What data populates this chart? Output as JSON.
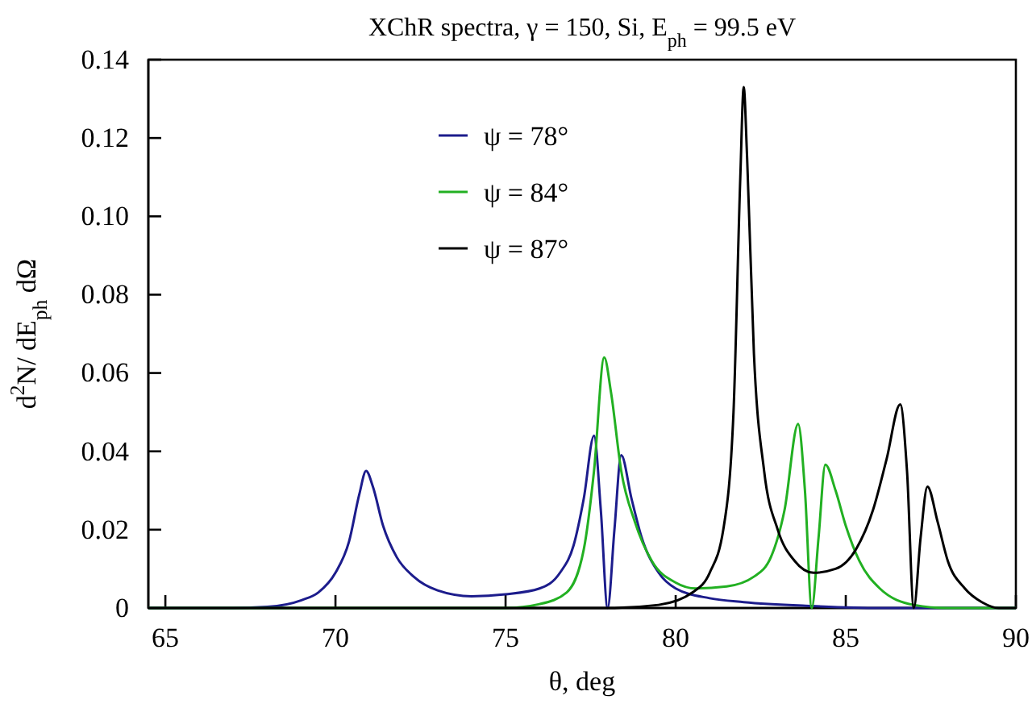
{
  "chart_data": {
    "type": "line",
    "title": "XChR spectra, γ = 150, Si, E$_{ph}$ = 99.5 eV",
    "xlabel": "θ, deg",
    "ylabel": "d$^{2}$N/ dE$_{ph}$ dΩ",
    "xlim": [
      64.5,
      90
    ],
    "xticks": [
      65,
      70,
      75,
      80,
      85,
      90
    ],
    "ylim": [
      0,
      0.14
    ],
    "yticks": [
      0,
      {
        "value": 0.02,
        "label": "0.02"
      },
      {
        "value": 0.04,
        "label": "0.04"
      },
      {
        "value": 0.06,
        "label": "0.06"
      },
      {
        "value": 0.08,
        "label": "0.08"
      },
      {
        "value": 0.1,
        "label": "0.10"
      },
      {
        "value": 0.12,
        "label": "0.12"
      },
      {
        "value": 0.14,
        "label": "0.14"
      }
    ],
    "grid": false,
    "legend": "top",
    "marker": "none",
    "line_style": "solid",
    "series": [
      {
        "name": "ψ = 78°",
        "color": "#1c1c8c",
        "x": [
          64.5,
          67,
          68,
          69,
          69.5,
          70,
          70.4,
          70.7,
          70.9,
          71.1,
          71.4,
          71.8,
          72.3,
          73,
          74,
          75,
          76,
          76.6,
          77,
          77.3,
          77.6,
          77.8,
          78,
          78.2,
          78.4,
          78.7,
          79,
          79.5,
          80,
          81,
          82,
          84,
          86,
          90
        ],
        "values": [
          0,
          0,
          0.0003,
          0.002,
          0.004,
          0.009,
          0.017,
          0.029,
          0.035,
          0.031,
          0.021,
          0.013,
          0.008,
          0.0045,
          0.003,
          0.0035,
          0.005,
          0.009,
          0.016,
          0.028,
          0.044,
          0.025,
          0,
          0.02,
          0.039,
          0.028,
          0.018,
          0.009,
          0.005,
          0.0025,
          0.0015,
          0.0005,
          0,
          0
        ]
      },
      {
        "name": "ψ = 84°",
        "color": "#22b022",
        "x": [
          64.5,
          75,
          76,
          76.8,
          77.3,
          77.6,
          77.9,
          78.1,
          78.4,
          78.8,
          79.3,
          80,
          80.6,
          81.5,
          82.3,
          82.8,
          83.2,
          83.6,
          83.8,
          84,
          84.2,
          84.4,
          84.7,
          85,
          85.4,
          86,
          87,
          88,
          90
        ],
        "values": [
          0,
          0,
          0.001,
          0.004,
          0.015,
          0.035,
          0.064,
          0.055,
          0.035,
          0.022,
          0.012,
          0.0065,
          0.005,
          0.0055,
          0.008,
          0.013,
          0.025,
          0.047,
          0.03,
          0,
          0.018,
          0.0366,
          0.03,
          0.021,
          0.012,
          0.005,
          0.0008,
          0,
          0
        ]
      },
      {
        "name": "ψ = 87°",
        "color": "#000000",
        "x": [
          64.5,
          78,
          79.5,
          80.5,
          81,
          81.4,
          81.7,
          81.9,
          82,
          82.1,
          82.3,
          82.6,
          83,
          83.5,
          84.05,
          84.7,
          85.3,
          85.8,
          86.2,
          86.6,
          86.8,
          87,
          87.2,
          87.4,
          87.7,
          88,
          88.5,
          89,
          89.5,
          90
        ],
        "values": [
          0,
          0,
          0.0008,
          0.004,
          0.009,
          0.02,
          0.05,
          0.11,
          0.133,
          0.115,
          0.065,
          0.035,
          0.02,
          0.012,
          0.009,
          0.01,
          0.015,
          0.025,
          0.038,
          0.052,
          0.035,
          0,
          0.018,
          0.031,
          0.022,
          0.012,
          0.005,
          0.0015,
          0,
          0
        ]
      }
    ]
  }
}
